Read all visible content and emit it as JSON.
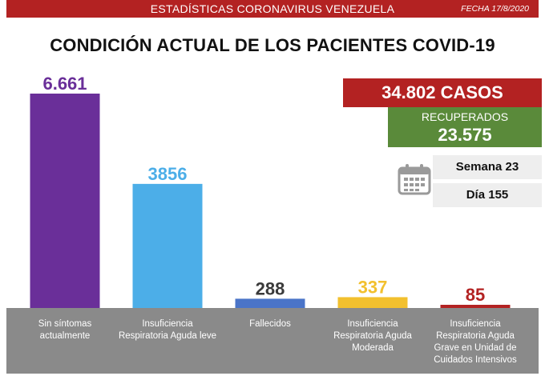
{
  "header": {
    "banner_title": "ESTADÍSTICAS CORONAVIRUS VENEZUELA",
    "date_label": "FECHA 17/8/2020"
  },
  "main_title": "CONDICIÓN ACTUAL DE LOS PACIENTES COVID-19",
  "summary": {
    "cases": "34.802 CASOS",
    "recovered_label": "RECUPERADOS",
    "recovered_value": "23.575",
    "week": "Semana 23",
    "day": "Día 155"
  },
  "colors": {
    "banner_red": "#b32222",
    "recovered_green": "#5a8a3a",
    "bar_purple": "#6a2f99",
    "bar_light_blue": "#4caee8",
    "bar_blue": "#4a74c8",
    "bar_yellow": "#f2c02e",
    "bar_red": "#b32222",
    "label_grey": "#8a8a8a"
  },
  "icons": [
    "calendar-icon"
  ],
  "chart_data": {
    "type": "bar",
    "title": "CONDICIÓN ACTUAL DE LOS PACIENTES COVID-19",
    "xlabel": "",
    "ylabel": "",
    "ylim": [
      0,
      6661
    ],
    "categories": [
      [
        "Sin síntomas",
        "actualmente"
      ],
      [
        "Insuficiencia",
        "Respiratoria Aguda leve"
      ],
      [
        "Fallecidos"
      ],
      [
        "Insuficiencia",
        "Respiratoria Aguda",
        "Moderada"
      ],
      [
        "Insuficiencia",
        "Respiratoria Aguda",
        "Grave en Unidad de",
        "Cuidados Intensivos"
      ]
    ],
    "values": [
      6661,
      3856,
      288,
      337,
      85
    ],
    "value_labels": [
      "6.661",
      "3856",
      "288",
      "337",
      "85"
    ],
    "bar_colors": [
      "#6a2f99",
      "#4caee8",
      "#4a74c8",
      "#f2c02e",
      "#b32222"
    ],
    "label_colors": [
      "#6a2f99",
      "#4caee8",
      "#3a3a3a",
      "#f2c02e",
      "#b32222"
    ]
  }
}
